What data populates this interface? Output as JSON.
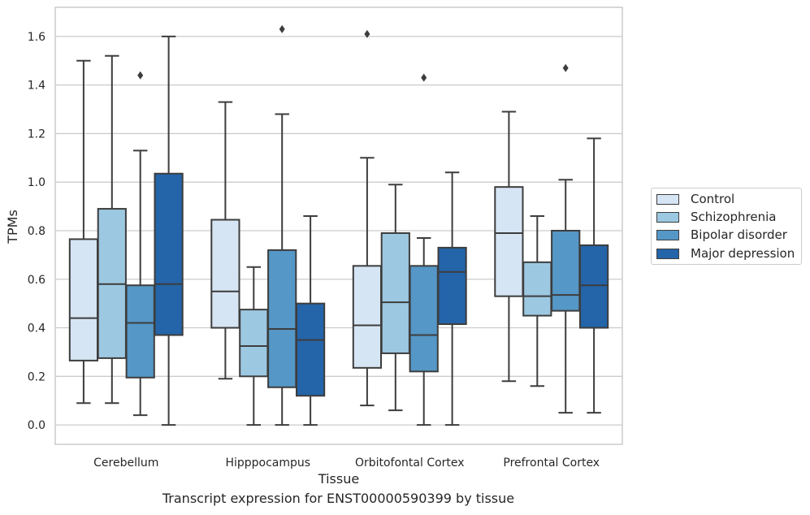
{
  "caption": "Transcript expression for ENST00000590399 by tissue",
  "colors": {
    "control": "#d6e5f4",
    "schizophrenia": "#9dc8e1",
    "bipolar_disorder": "#5597c6",
    "major_depression": "#2464a8",
    "grid": "#cccccc",
    "line": "#3d3d3d"
  },
  "chart_data": {
    "type": "box",
    "xlabel": "Tissue",
    "ylabel": "TPMs",
    "ylim": [
      -0.08,
      1.72
    ],
    "yticks": [
      "0.0",
      "0.2",
      "0.4",
      "0.6",
      "0.8",
      "1.0",
      "1.2",
      "1.4",
      "1.6"
    ],
    "grid": "horizontal",
    "legend_position": "right",
    "categories": [
      "Cerebellum",
      "Hipppocampus",
      "Orbitofontal Cortex",
      "Prefrontal Cortex"
    ],
    "series": [
      {
        "name": "Control",
        "color": "#d6e5f4",
        "boxes": [
          {
            "whisker_low": 0.09,
            "q1": 0.265,
            "median": 0.44,
            "q3": 0.765,
            "whisker_high": 1.5,
            "outliers": []
          },
          {
            "whisker_low": 0.19,
            "q1": 0.4,
            "median": 0.55,
            "q3": 0.845,
            "whisker_high": 1.33,
            "outliers": []
          },
          {
            "whisker_low": 0.08,
            "q1": 0.235,
            "median": 0.41,
            "q3": 0.655,
            "whisker_high": 1.1,
            "outliers": [
              1.61
            ]
          },
          {
            "whisker_low": 0.18,
            "q1": 0.53,
            "median": 0.79,
            "q3": 0.98,
            "whisker_high": 1.29,
            "outliers": []
          }
        ]
      },
      {
        "name": "Schizophrenia",
        "color": "#9dc8e1",
        "boxes": [
          {
            "whisker_low": 0.09,
            "q1": 0.275,
            "median": 0.58,
            "q3": 0.89,
            "whisker_high": 1.52,
            "outliers": []
          },
          {
            "whisker_low": 0.0,
            "q1": 0.2,
            "median": 0.325,
            "q3": 0.475,
            "whisker_high": 0.65,
            "outliers": []
          },
          {
            "whisker_low": 0.06,
            "q1": 0.295,
            "median": 0.505,
            "q3": 0.79,
            "whisker_high": 0.99,
            "outliers": []
          },
          {
            "whisker_low": 0.16,
            "q1": 0.45,
            "median": 0.53,
            "q3": 0.67,
            "whisker_high": 0.86,
            "outliers": []
          }
        ]
      },
      {
        "name": "Bipolar disorder",
        "color": "#5597c6",
        "boxes": [
          {
            "whisker_low": 0.04,
            "q1": 0.195,
            "median": 0.42,
            "q3": 0.575,
            "whisker_high": 1.13,
            "outliers": [
              1.44
            ]
          },
          {
            "whisker_low": 0.0,
            "q1": 0.155,
            "median": 0.395,
            "q3": 0.72,
            "whisker_high": 1.28,
            "outliers": [
              1.63
            ]
          },
          {
            "whisker_low": 0.0,
            "q1": 0.22,
            "median": 0.37,
            "q3": 0.655,
            "whisker_high": 0.77,
            "outliers": [
              1.43
            ]
          },
          {
            "whisker_low": 0.05,
            "q1": 0.47,
            "median": 0.535,
            "q3": 0.8,
            "whisker_high": 1.01,
            "outliers": [
              1.47
            ]
          }
        ]
      },
      {
        "name": "Major depression",
        "color": "#2464a8",
        "boxes": [
          {
            "whisker_low": 0.0,
            "q1": 0.37,
            "median": 0.58,
            "q3": 1.035,
            "whisker_high": 1.6,
            "outliers": []
          },
          {
            "whisker_low": 0.0,
            "q1": 0.12,
            "median": 0.35,
            "q3": 0.5,
            "whisker_high": 0.86,
            "outliers": []
          },
          {
            "whisker_low": 0.0,
            "q1": 0.415,
            "median": 0.63,
            "q3": 0.73,
            "whisker_high": 1.04,
            "outliers": []
          },
          {
            "whisker_low": 0.05,
            "q1": 0.4,
            "median": 0.575,
            "q3": 0.74,
            "whisker_high": 1.18,
            "outliers": []
          }
        ]
      }
    ]
  }
}
